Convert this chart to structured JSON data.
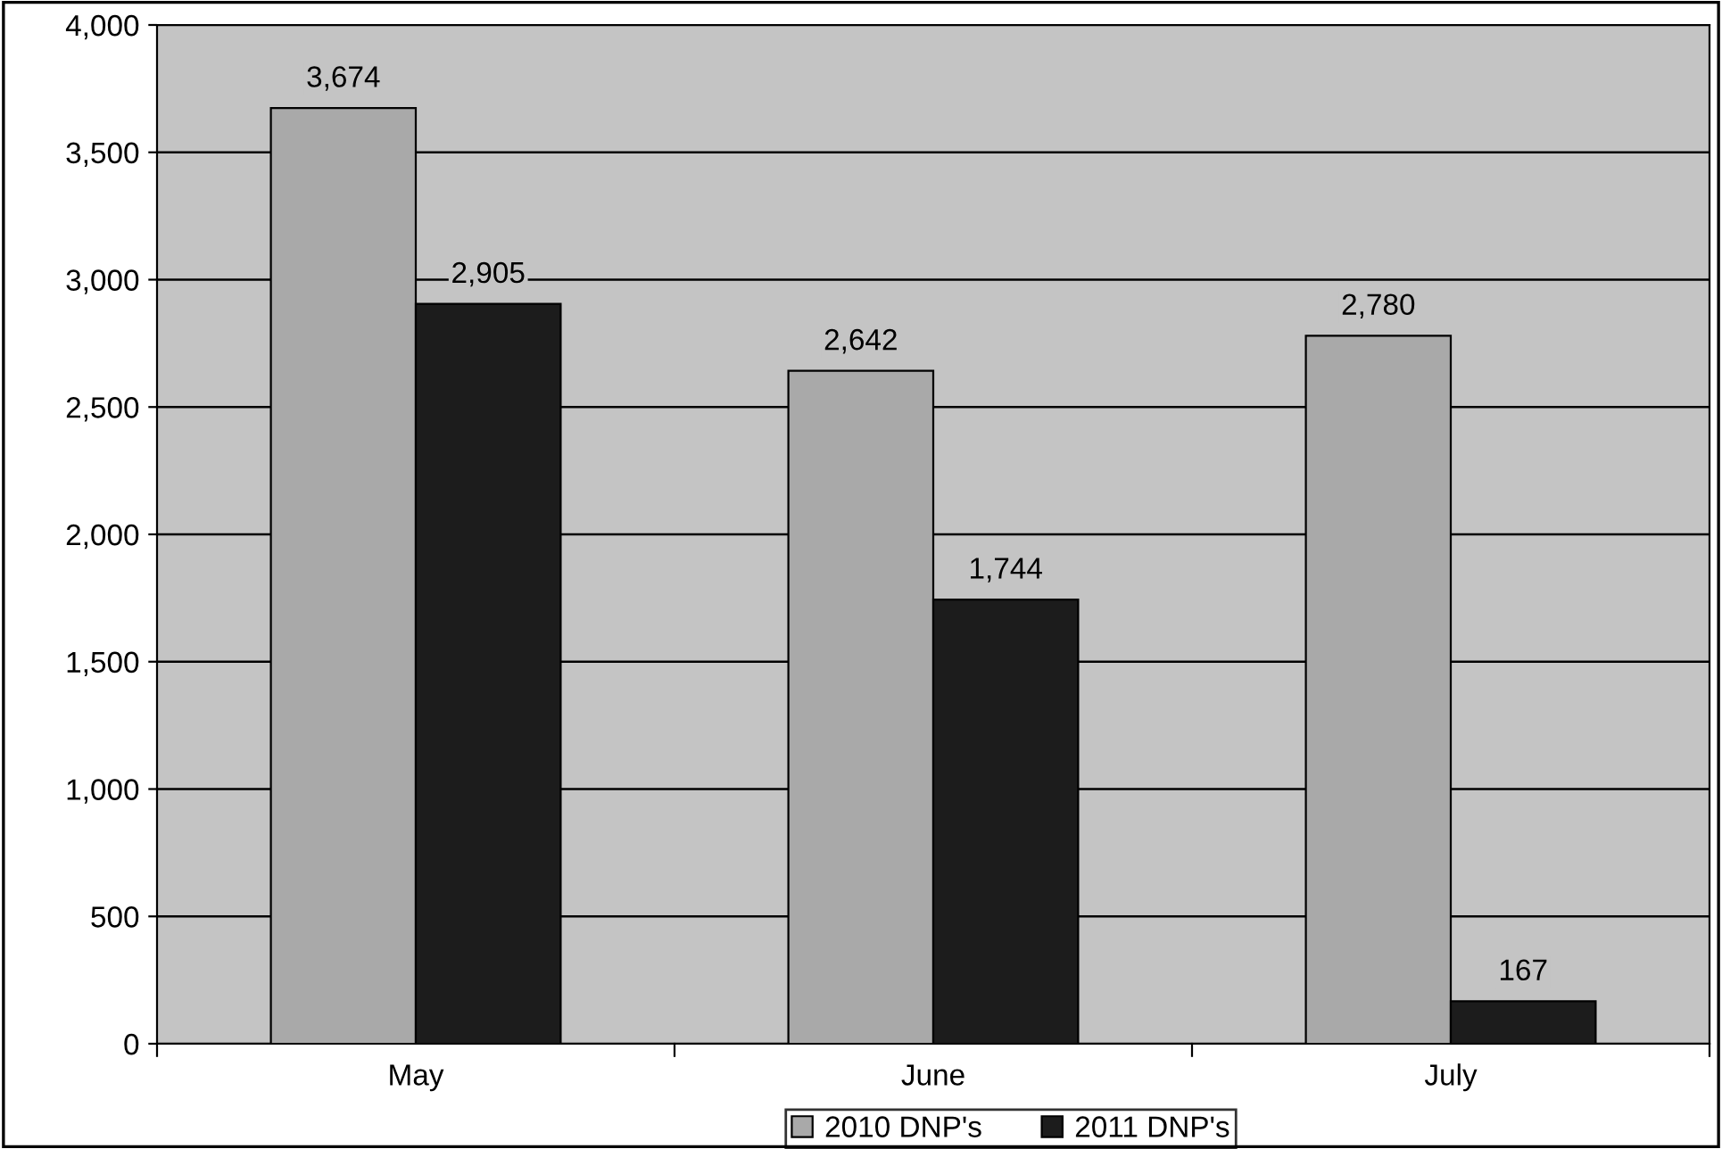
{
  "chart_data": {
    "type": "bar",
    "categories": [
      "May",
      "June",
      "July"
    ],
    "series": [
      {
        "name": "2010 DNP's",
        "color": "#a9a9a9",
        "values": [
          3674,
          2642,
          2780
        ],
        "value_labels": [
          "3,674",
          "2,642",
          "2,780"
        ]
      },
      {
        "name": "2011 DNP's",
        "color": "#1c1c1c",
        "values": [
          2905,
          1744,
          167
        ],
        "value_labels": [
          "2,905",
          "1,744",
          "167"
        ]
      }
    ],
    "ylim": [
      0,
      4000
    ],
    "yticks": [
      0,
      500,
      {
        "value": 1000,
        "label": "1,000"
      },
      {
        "value": 1500,
        "label": "1,500"
      },
      {
        "value": 2000,
        "label": "2,000"
      },
      {
        "value": 2500,
        "label": "2,500"
      },
      {
        "value": 3000,
        "label": "3,000"
      },
      {
        "value": 3500,
        "label": "3,500"
      },
      {
        "value": 4000,
        "label": "4,000"
      }
    ],
    "grid": "y",
    "legend": "bottom"
  }
}
